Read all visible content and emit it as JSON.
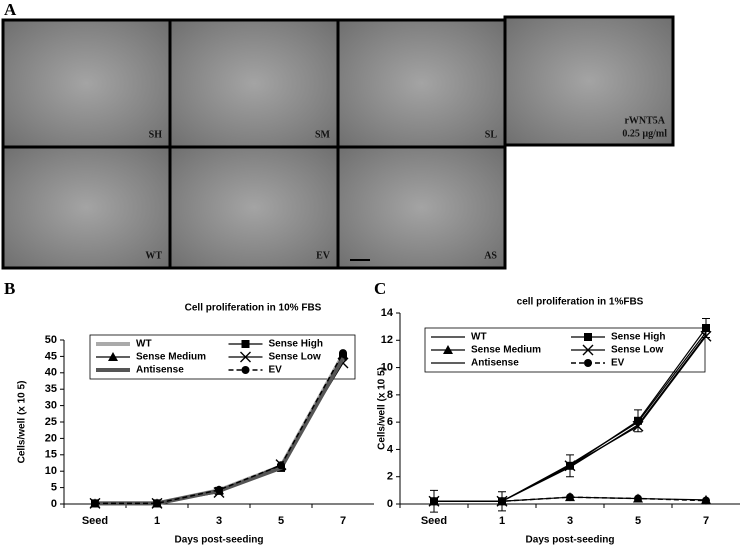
{
  "panel_a": {
    "label": "A",
    "images": [
      {
        "label": "SH"
      },
      {
        "label": "SM"
      },
      {
        "label": "SL"
      },
      {
        "label": "rWNT5A",
        "sublabel": "0.25 µg/ml"
      },
      {
        "label": "WT"
      },
      {
        "label": "EV"
      },
      {
        "label": "AS"
      }
    ]
  },
  "chart_data": [
    {
      "type": "line",
      "panel": "B",
      "title": "Cell proliferation in 10% FBS",
      "x_label": "Days post-seeding",
      "y_label": "Cells/well (x 10 5)",
      "categories": [
        "Seed",
        "1",
        "3",
        "5",
        "7"
      ],
      "ylim": [
        0,
        50
      ],
      "yticks": [
        0,
        5,
        10,
        15,
        20,
        25,
        30,
        35,
        40,
        45,
        50
      ],
      "legend": "top-left",
      "series": [
        {
          "name": "WT",
          "color": "#aaaaaa",
          "line": "thick",
          "marker": null,
          "values": [
            0.2,
            0.2,
            4.2,
            11.5,
            45.5
          ]
        },
        {
          "name": "Sense High",
          "color": "#000000",
          "line": "thin",
          "marker": "square",
          "values": [
            0.2,
            0.2,
            4,
            11,
            45
          ]
        },
        {
          "name": "Sense Medium",
          "color": "#000000",
          "line": "thin",
          "marker": "triangle",
          "values": [
            0.2,
            0.2,
            4.2,
            11.5,
            45.5
          ]
        },
        {
          "name": "Sense Low",
          "color": "#000000",
          "line": "thin",
          "marker": "x",
          "values": [
            0.2,
            0.2,
            3.5,
            12,
            43
          ]
        },
        {
          "name": "Antisense",
          "color": "#555555",
          "line": "thick",
          "marker": null,
          "values": [
            0.2,
            0.2,
            4,
            11,
            44.5
          ]
        },
        {
          "name": "EV",
          "color": "#000000",
          "line": "dashed",
          "marker": "circle",
          "values": [
            0.2,
            0.2,
            4.3,
            11.8,
            46
          ]
        }
      ]
    },
    {
      "type": "line",
      "panel": "C",
      "title": "cell proliferation in 1%FBS",
      "x_label": "Days post-seeding",
      "y_label": "Cells/well (x 10 5)",
      "categories": [
        "Seed",
        "1",
        "3",
        "5",
        "7"
      ],
      "ylim": [
        0,
        14
      ],
      "yticks": [
        0,
        2,
        4,
        6,
        8,
        10,
        12,
        14
      ],
      "legend": "top-left",
      "series": [
        {
          "name": "WT",
          "color": "#000000",
          "line": "thin",
          "marker": null,
          "values": [
            0.2,
            0.2,
            2.9,
            6,
            12.6
          ]
        },
        {
          "name": "Sense High",
          "color": "#000000",
          "line": "thin",
          "marker": "square",
          "values": [
            0.2,
            0.2,
            2.8,
            6.1,
            12.9
          ],
          "errors": [
            0.8,
            0.7,
            0.8,
            0.8,
            0.7
          ]
        },
        {
          "name": "Sense Medium",
          "color": "#000000",
          "line": "thin",
          "marker": "triangle",
          "values": [
            0.2,
            0.2,
            0.5,
            0.4,
            0.3
          ]
        },
        {
          "name": "Sense Low",
          "color": "#000000",
          "line": "thin",
          "marker": "x",
          "values": [
            0.2,
            0.2,
            2.8,
            5.7,
            12.3
          ]
        },
        {
          "name": "Antisense",
          "color": "#000000",
          "line": "thin",
          "marker": null,
          "values": [
            0.2,
            0.2,
            2.7,
            5.8,
            12.4
          ]
        },
        {
          "name": "EV",
          "color": "#000000",
          "line": "dashed",
          "marker": "circle",
          "values": [
            0.2,
            0.2,
            0.5,
            0.4,
            0.25
          ]
        }
      ]
    }
  ]
}
